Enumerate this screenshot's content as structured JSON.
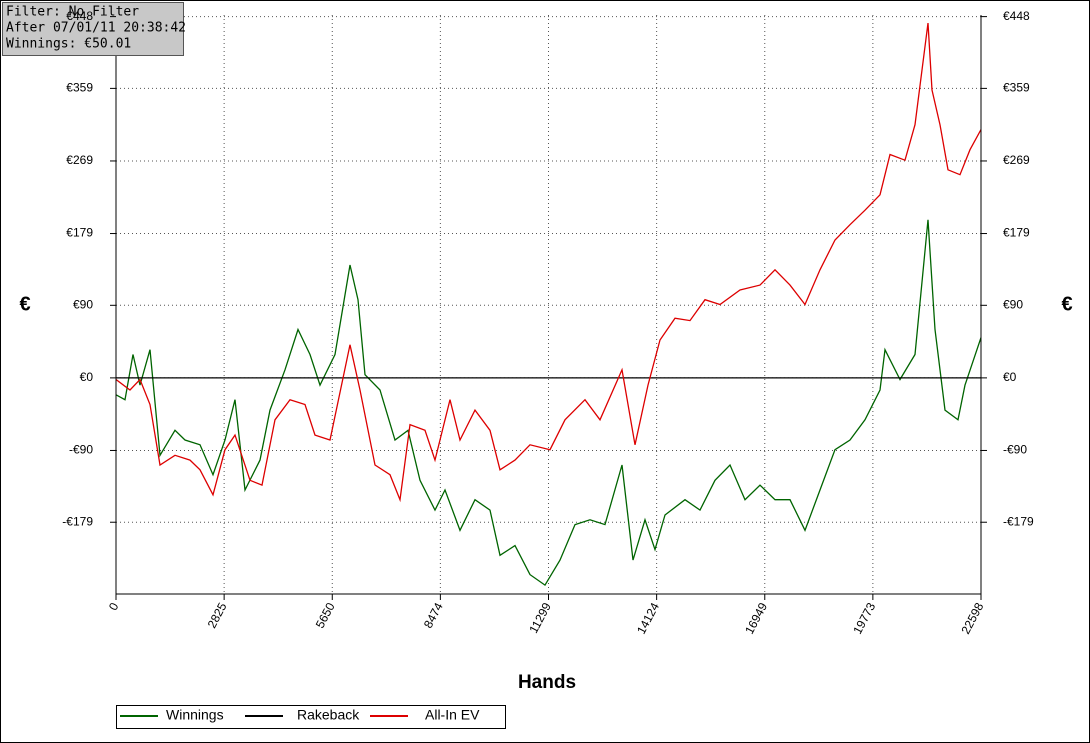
{
  "chart_data": {
    "type": "line",
    "annotations": [
      "Filter: No Filter",
      "After 07/01/11 20:38:42",
      "Winnings: €50.01"
    ],
    "xlabel": "Hands",
    "ylabel": "€",
    "xlim": [
      0,
      22598
    ],
    "xticks": [
      0,
      2825,
      5650,
      8474,
      11299,
      14124,
      16949,
      19773,
      22598
    ],
    "ylim": [
      -268,
      450
    ],
    "yticks": [
      {
        "value": -179,
        "label": "-€179"
      },
      {
        "value": -90,
        "label": "-€90"
      },
      {
        "value": 0,
        "label": "€0"
      },
      {
        "value": 90,
        "label": "€90"
      },
      {
        "value": 179,
        "label": "€179"
      },
      {
        "value": 269,
        "label": "€269"
      },
      {
        "value": 359,
        "label": "€359"
      },
      {
        "value": 448,
        "label": "€448"
      }
    ],
    "grid": true,
    "legend": "bottom",
    "series": [
      {
        "name": "Winnings",
        "color": "#006400",
        "x": [
          0,
          235,
          444,
          627,
          888,
          1150,
          1541,
          1803,
          2195,
          2534,
          2848,
          3109,
          3370,
          3762,
          4023,
          4415,
          4755,
          5068,
          5330,
          5721,
          6113,
          6322,
          6505,
          6897,
          7289,
          7628,
          7942,
          8334,
          8595,
          8987,
          9379,
          9770,
          10032,
          10424,
          10815,
          11207,
          11600,
          11991,
          12383,
          12775,
          13219,
          13507,
          13820,
          14081,
          14343,
          14865,
          15257,
          15649,
          16040,
          16432,
          16824,
          17216,
          17608,
          18000,
          18392,
          18784,
          19176,
          19567,
          19959,
          20090,
          20482,
          20874,
          21214,
          21397,
          21658,
          21997,
          22180,
          22598
        ],
        "values": [
          -21,
          -27,
          29,
          -9,
          35,
          -96,
          -65,
          -77,
          -83,
          -120,
          -77,
          -27,
          -139,
          -102,
          -40,
          10,
          60,
          29,
          -9,
          29,
          140,
          97,
          4,
          -15,
          -77,
          -65,
          -127,
          -164,
          -139,
          -189,
          -151,
          -164,
          -220,
          -208,
          -244,
          -257,
          -226,
          -182,
          -176,
          -182,
          -108,
          -226,
          -176,
          -213,
          -170,
          -151,
          -164,
          -127,
          -108,
          -151,
          -133,
          -151,
          -151,
          -189,
          -139,
          -89,
          -77,
          -52,
          -15,
          35,
          -2,
          29,
          196,
          60,
          -40,
          -52,
          -9,
          50
        ]
      },
      {
        "name": "Rakeback",
        "color": "#000000",
        "x": [
          0,
          22598
        ],
        "values": [
          0,
          0
        ]
      },
      {
        "name": "All-In EV",
        "color": "#dd0000",
        "x": [
          0,
          366,
          627,
          888,
          1150,
          1541,
          1933,
          2195,
          2534,
          2848,
          3109,
          3501,
          3814,
          4154,
          4546,
          4938,
          5199,
          5591,
          6113,
          6375,
          6766,
          7158,
          7420,
          7681,
          8073,
          8334,
          8726,
          8987,
          9379,
          9770,
          10032,
          10424,
          10815,
          11338,
          11730,
          12253,
          12645,
          13219,
          13559,
          13899,
          14212,
          14604,
          14995,
          15387,
          15779,
          16302,
          16824,
          17216,
          17608,
          18000,
          18392,
          18784,
          19176,
          19567,
          19959,
          20221,
          20613,
          20874,
          21214,
          21318,
          21527,
          21736,
          22049,
          22310,
          22598
        ],
        "values": [
          -2,
          -15,
          -2,
          -33,
          -108,
          -96,
          -102,
          -114,
          -145,
          -89,
          -71,
          -127,
          -133,
          -52,
          -27,
          -33,
          -71,
          -77,
          41,
          -15,
          -108,
          -120,
          -151,
          -58,
          -65,
          -102,
          -27,
          -77,
          -40,
          -65,
          -114,
          -102,
          -83,
          -89,
          -52,
          -27,
          -52,
          10,
          -83,
          -9,
          47,
          74,
          71,
          97,
          91,
          109,
          115,
          134,
          115,
          91,
          134,
          171,
          190,
          208,
          227,
          277,
          270,
          314,
          440,
          357,
          314,
          258,
          252,
          283,
          308
        ]
      }
    ]
  }
}
